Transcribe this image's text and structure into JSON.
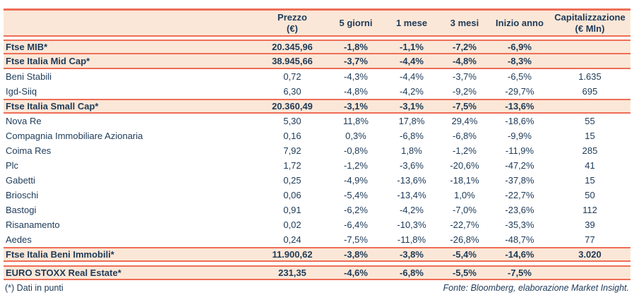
{
  "colors": {
    "accent_line": "#ee6e57",
    "band_bg": "#fbe7d7",
    "text_navy": "#1d3a58"
  },
  "header": {
    "cols": [
      {
        "line1": "Prezzo",
        "line2": "(€)"
      },
      {
        "line1": "5 giorni",
        "line2": ""
      },
      {
        "line1": "1 mese",
        "line2": ""
      },
      {
        "line1": "3 mesi",
        "line2": ""
      },
      {
        "line1": "Inizio anno",
        "line2": ""
      },
      {
        "line1": "Capitalizzazione",
        "line2": "(€ Mln)"
      }
    ]
  },
  "chart_data": {
    "type": "table",
    "columns": [
      "",
      "Prezzo (€)",
      "5 giorni",
      "1 mese",
      "3 mesi",
      "Inizio anno",
      "Capitalizzazione (€ Mln)"
    ],
    "rows": [
      {
        "name": "Ftse MIB*",
        "style": "index",
        "prezzo": "20.345,96",
        "d5": "-1,8%",
        "m1": "-1,1%",
        "m3": "-7,2%",
        "ytd": "-6,9%",
        "cap": ""
      },
      {
        "name": "Ftse Italia Mid Cap*",
        "style": "index",
        "prezzo": "38.945,66",
        "d5": "-3,7%",
        "m1": "-4,4%",
        "m3": "-4,8%",
        "ytd": "-8,3%",
        "cap": ""
      },
      {
        "name": "Beni Stabili",
        "style": "stock",
        "prezzo": "0,72",
        "d5": "-4,3%",
        "m1": "-4,4%",
        "m3": "-3,7%",
        "ytd": "-6,5%",
        "cap": "1.635"
      },
      {
        "name": "Igd-Siiq",
        "style": "stock",
        "prezzo": "6,30",
        "d5": "-4,8%",
        "m1": "-4,2%",
        "m3": "-9,2%",
        "ytd": "-29,7%",
        "cap": "695"
      },
      {
        "name": "Ftse Italia Small Cap*",
        "style": "index",
        "prezzo": "20.360,49",
        "d5": "-3,1%",
        "m1": "-3,1%",
        "m3": "-7,5%",
        "ytd": "-13,6%",
        "cap": ""
      },
      {
        "name": "Nova Re",
        "style": "stock",
        "prezzo": "5,30",
        "d5": "11,8%",
        "m1": "17,8%",
        "m3": "29,4%",
        "ytd": "-18,6%",
        "cap": "55"
      },
      {
        "name": "Compagnia Immobiliare Azionaria",
        "style": "stock",
        "prezzo": "0,16",
        "d5": "0,3%",
        "m1": "-6,8%",
        "m3": "-6,8%",
        "ytd": "-9,9%",
        "cap": "15"
      },
      {
        "name": "Coima Res",
        "style": "stock",
        "prezzo": "7,92",
        "d5": "-0,8%",
        "m1": "1,8%",
        "m3": "-1,2%",
        "ytd": "-11,9%",
        "cap": "285"
      },
      {
        "name": "Plc",
        "style": "stock",
        "prezzo": "1,72",
        "d5": "-1,2%",
        "m1": "-3,6%",
        "m3": "-20,6%",
        "ytd": "-47,2%",
        "cap": "41"
      },
      {
        "name": "Gabetti",
        "style": "stock",
        "prezzo": "0,25",
        "d5": "-4,9%",
        "m1": "-13,6%",
        "m3": "-18,1%",
        "ytd": "-37,8%",
        "cap": "15"
      },
      {
        "name": "Brioschi",
        "style": "stock",
        "prezzo": "0,06",
        "d5": "-5,4%",
        "m1": "-13,4%",
        "m3": "1,0%",
        "ytd": "-22,7%",
        "cap": "50"
      },
      {
        "name": "Bastogi",
        "style": "stock",
        "prezzo": "0,91",
        "d5": "-6,2%",
        "m1": "-4,2%",
        "m3": "-7,0%",
        "ytd": "-23,6%",
        "cap": "112"
      },
      {
        "name": "Risanamento",
        "style": "stock",
        "prezzo": "0,02",
        "d5": "-6,4%",
        "m1": "-10,3%",
        "m3": "-22,7%",
        "ytd": "-35,3%",
        "cap": "39"
      },
      {
        "name": "Aedes",
        "style": "stock",
        "prezzo": "0,24",
        "d5": "-7,5%",
        "m1": "-11,8%",
        "m3": "-26,8%",
        "ytd": "-48,7%",
        "cap": "77"
      },
      {
        "name": "Ftse Italia Beni Immobili*",
        "style": "index",
        "prezzo": "11.900,62",
        "d5": "-3,8%",
        "m1": "-3,8%",
        "m3": "-5,4%",
        "ytd": "-14,6%",
        "cap": "3.020"
      },
      {
        "name": "EURO STOXX Real Estate*",
        "style": "index",
        "gap_before": true,
        "prezzo": "231,35",
        "d5": "-4,6%",
        "m1": "-6,8%",
        "m3": "-5,5%",
        "ytd": "-7,5%",
        "cap": ""
      }
    ],
    "footnote": "(*) Dati in punti",
    "source": "Fonte: Bloomberg, elaborazione Market Insight."
  },
  "footer": {
    "note": "(*) Dati in punti",
    "source": "Fonte: Bloomberg, elaborazione Market Insight."
  }
}
